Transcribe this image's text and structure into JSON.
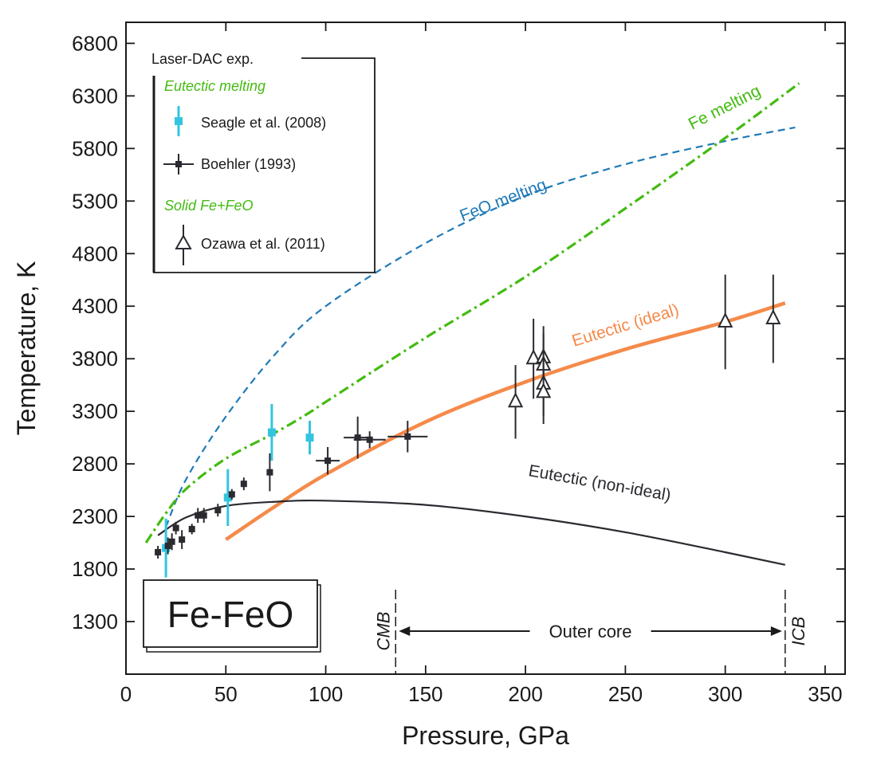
{
  "chart_data": {
    "type": "scatter",
    "xlabel": "Pressure, GPa",
    "ylabel": "Temperature, K",
    "xlim": [
      0,
      360
    ],
    "ylim": [
      800,
      7000
    ],
    "x_ticks": [
      0,
      50,
      100,
      150,
      200,
      250,
      300,
      350
    ],
    "y_ticks": [
      1300,
      1800,
      2300,
      2800,
      3300,
      3800,
      4300,
      4800,
      5300,
      5800,
      6300,
      6800
    ],
    "system_label": "Fe-FeO",
    "legend": {
      "title": "Laser-DAC exp.",
      "group_eutectic": "Eutectic melting",
      "group_solid": "Solid Fe+FeO",
      "placement": "top-left"
    },
    "curves": [
      {
        "name": "FeO melting",
        "style": "dashed",
        "color": "#1f7ab8",
        "points": [
          [
            20,
            2200
          ],
          [
            30,
            2650
          ],
          [
            50,
            3250
          ],
          [
            75,
            3850
          ],
          [
            100,
            4300
          ],
          [
            150,
            4900
          ],
          [
            200,
            5350
          ],
          [
            250,
            5650
          ],
          [
            300,
            5870
          ],
          [
            335,
            6000
          ]
        ]
      },
      {
        "name": "Fe melting",
        "style": "dash-dot",
        "color": "#44bb11",
        "points": [
          [
            10,
            2050
          ],
          [
            20,
            2330
          ],
          [
            30,
            2560
          ],
          [
            50,
            2850
          ],
          [
            75,
            3100
          ],
          [
            92,
            3290
          ],
          [
            100,
            3390
          ],
          [
            150,
            4000
          ],
          [
            200,
            4580
          ],
          [
            250,
            5230
          ],
          [
            300,
            5900
          ],
          [
            337,
            6420
          ]
        ]
      },
      {
        "name": "Eutectic (ideal)",
        "style": "solid-thick",
        "color": "#f58a4a",
        "points": [
          [
            50,
            2080
          ],
          [
            75,
            2400
          ],
          [
            100,
            2700
          ],
          [
            150,
            3200
          ],
          [
            200,
            3580
          ],
          [
            250,
            3890
          ],
          [
            300,
            4150
          ],
          [
            330,
            4330
          ]
        ]
      },
      {
        "name": "Eutectic (non-ideal)",
        "style": "solid",
        "color": "#2a2a30",
        "points": [
          [
            16,
            2120
          ],
          [
            30,
            2290
          ],
          [
            50,
            2400
          ],
          [
            75,
            2440
          ],
          [
            100,
            2450
          ],
          [
            150,
            2410
          ],
          [
            200,
            2300
          ],
          [
            250,
            2150
          ],
          [
            300,
            1960
          ],
          [
            330,
            1840
          ]
        ]
      }
    ],
    "series": [
      {
        "name": "Seagle et al. (2008)",
        "marker": "square",
        "color": "#33c5e0",
        "points": [
          {
            "x": 20,
            "y": 2000,
            "yerr": 280
          },
          {
            "x": 51,
            "y": 2480,
            "yerr": 270
          },
          {
            "x": 73,
            "y": 3100,
            "yerr": 270
          },
          {
            "x": 92,
            "y": 3050,
            "yerr": 160
          }
        ]
      },
      {
        "name": "Boehler (1993)",
        "marker": "small-square",
        "color": "#2a2a30",
        "points": [
          {
            "x": 16,
            "y": 1960,
            "yerr": 60
          },
          {
            "x": 21,
            "y": 2020,
            "yerr": 80
          },
          {
            "x": 23,
            "y": 2060,
            "yerr": 80
          },
          {
            "x": 25,
            "y": 2190,
            "yerr": 60
          },
          {
            "x": 28,
            "y": 2080,
            "yerr": 90
          },
          {
            "x": 33,
            "y": 2180,
            "yerr": 50
          },
          {
            "x": 36,
            "y": 2310,
            "yerr": 70
          },
          {
            "x": 39,
            "y": 2310,
            "yerr": 70
          },
          {
            "x": 46,
            "y": 2360,
            "yerr": 60
          },
          {
            "x": 53,
            "y": 2510,
            "yerr": 50
          },
          {
            "x": 59,
            "y": 2610,
            "yerr": 60
          },
          {
            "x": 72,
            "y": 2720,
            "yerr": 180
          },
          {
            "x": 101,
            "y": 2830,
            "yerr": 130,
            "xerr": 6
          },
          {
            "x": 116,
            "y": 3050,
            "yerr": 200,
            "xerr": 7
          },
          {
            "x": 122,
            "y": 3030,
            "yerr": 80,
            "xerr": 8
          },
          {
            "x": 141,
            "y": 3060,
            "yerr": 150,
            "xerr": 10
          }
        ]
      },
      {
        "name": "Ozawa et al. (2011)",
        "marker": "open-triangle",
        "color": "#2a2a30",
        "points": [
          {
            "x": 195,
            "y": 3390,
            "yerr": 350
          },
          {
            "x": 204,
            "y": 3800,
            "yerr": 380
          },
          {
            "x": 209,
            "y": 3810,
            "yerr": 300
          },
          {
            "x": 209,
            "y": 3740,
            "yerr": 300
          },
          {
            "x": 209,
            "y": 3560,
            "yerr": 300
          },
          {
            "x": 209,
            "y": 3480,
            "yerr": 300
          },
          {
            "x": 300,
            "y": 4150,
            "yerr": 450
          },
          {
            "x": 324,
            "y": 4180,
            "yerr": 420
          }
        ]
      }
    ],
    "annotations": {
      "region": "Outer core",
      "cmb_label": "CMB",
      "icb_label": "ICB",
      "cmb_pressure": 135,
      "icb_pressure": 330
    }
  }
}
